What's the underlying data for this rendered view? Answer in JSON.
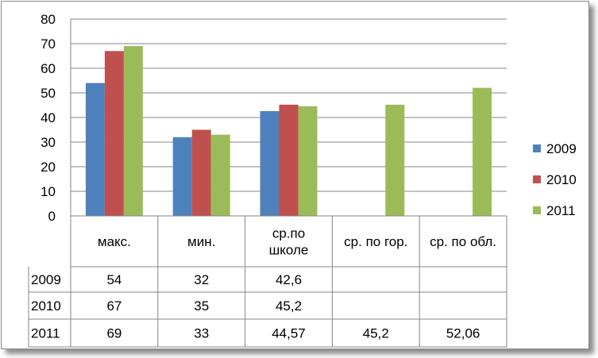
{
  "chart_data": {
    "type": "bar",
    "categories": [
      "макс.",
      "мин.",
      "ср.по школе",
      "ср. по гор.",
      "ср. по обл."
    ],
    "category_lines": [
      [
        "макс."
      ],
      [
        "мин."
      ],
      [
        "ср.по",
        "школе"
      ],
      [
        "ср. по гор."
      ],
      [
        "ср. по обл."
      ]
    ],
    "series": [
      {
        "name": "2009",
        "color": "#4f81bd",
        "values": [
          54,
          32,
          42.6,
          null,
          null
        ],
        "labels": [
          "54",
          "32",
          "42,6",
          "",
          ""
        ]
      },
      {
        "name": "2010",
        "color": "#c0504d",
        "values": [
          67,
          35,
          45.2,
          null,
          null
        ],
        "labels": [
          "67",
          "35",
          "45,2",
          "",
          ""
        ]
      },
      {
        "name": "2011",
        "color": "#9bbb59",
        "values": [
          69,
          33,
          44.57,
          45.2,
          52.06
        ],
        "labels": [
          "69",
          "33",
          "44,57",
          "45,2",
          "52,06"
        ]
      }
    ],
    "yticks": [
      "0",
      "10",
      "20",
      "30",
      "40",
      "50",
      "60",
      "70",
      "80"
    ],
    "ylim": [
      0,
      80
    ],
    "grid": true,
    "legend_position": "right",
    "data_table": true
  }
}
